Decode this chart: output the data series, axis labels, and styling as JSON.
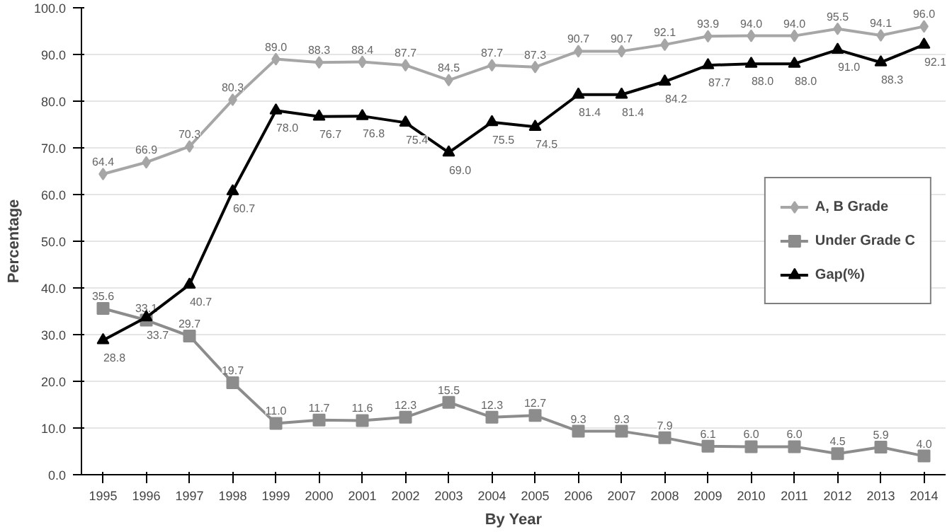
{
  "chart_data": {
    "type": "line",
    "xlabel": "By Year",
    "ylabel": "Percentage",
    "categories": [
      "1995",
      "1996",
      "1997",
      "1998",
      "1999",
      "2000",
      "2001",
      "2002",
      "2003",
      "2004",
      "2005",
      "2006",
      "2007",
      "2008",
      "2009",
      "2010",
      "2011",
      "2012",
      "2013",
      "2014"
    ],
    "ylim": [
      0,
      100
    ],
    "yticks": [
      {
        "value": 0,
        "label": "0.0"
      },
      {
        "value": 10,
        "label": "10.0"
      },
      {
        "value": 20,
        "label": "20.0"
      },
      {
        "value": 30,
        "label": "30.0"
      },
      {
        "value": 40,
        "label": "40.0"
      },
      {
        "value": 50,
        "label": "50.0"
      },
      {
        "value": 60,
        "label": "60.0"
      },
      {
        "value": 70,
        "label": "70.0"
      },
      {
        "value": 80,
        "label": "80.0"
      },
      {
        "value": 90,
        "label": "90.0"
      },
      {
        "value": 100,
        "label": "100.0"
      }
    ],
    "grid": "y",
    "legend": "right",
    "line_style": "solid",
    "series": [
      {
        "name": "A, B Grade",
        "color": "#a6a6a6",
        "marker": "diamond",
        "values": [
          64.4,
          66.9,
          70.3,
          80.3,
          89.0,
          88.3,
          88.4,
          87.7,
          84.5,
          87.7,
          87.3,
          90.7,
          90.7,
          92.1,
          93.9,
          94.0,
          94.0,
          95.5,
          94.1,
          96.0
        ],
        "value_labels": [
          "64.4",
          "66.9",
          "70.3",
          "80.3",
          "89.0",
          "88.3",
          "88.4",
          "87.7",
          "84.5",
          "87.7",
          "87.3",
          "90.7",
          "90.7",
          "92.1",
          "93.9",
          "94.0",
          "94.0",
          "95.5",
          "94.1",
          "96.0"
        ]
      },
      {
        "name": "Under Grade C",
        "color": "#8c8c8c",
        "marker": "square",
        "values": [
          35.6,
          33.1,
          29.7,
          19.7,
          11.0,
          11.7,
          11.6,
          12.3,
          15.5,
          12.3,
          12.7,
          9.3,
          9.3,
          7.9,
          6.1,
          6.0,
          6.0,
          4.5,
          5.9,
          4.0
        ],
        "value_labels": [
          "35.6",
          "33.1",
          "29.7",
          "19.7",
          "11.0",
          "11.7",
          "11.6",
          "12.3",
          "15.5",
          "12.3",
          "12.7",
          "9.3",
          "9.3",
          "7.9",
          "6.1",
          "6.0",
          "6.0",
          "4.5",
          "5.9",
          "4.0"
        ]
      },
      {
        "name": "Gap(%)",
        "color": "#000000",
        "marker": "triangle",
        "values": [
          28.8,
          33.7,
          40.7,
          60.7,
          78.0,
          76.7,
          76.8,
          75.4,
          69.0,
          75.5,
          74.5,
          81.4,
          81.4,
          84.2,
          87.7,
          88.0,
          88.0,
          91.0,
          88.3,
          92.1
        ],
        "value_labels": [
          "28.8",
          "33.7",
          "40.7",
          "60.7",
          "78.0",
          "76.7",
          "76.8",
          "75.4",
          "69.0",
          "75.5",
          "74.5",
          "81.4",
          "81.4",
          "84.2",
          "87.7",
          "88.0",
          "88.0",
          "91.0",
          "88.3",
          "92.1"
        ]
      }
    ]
  }
}
